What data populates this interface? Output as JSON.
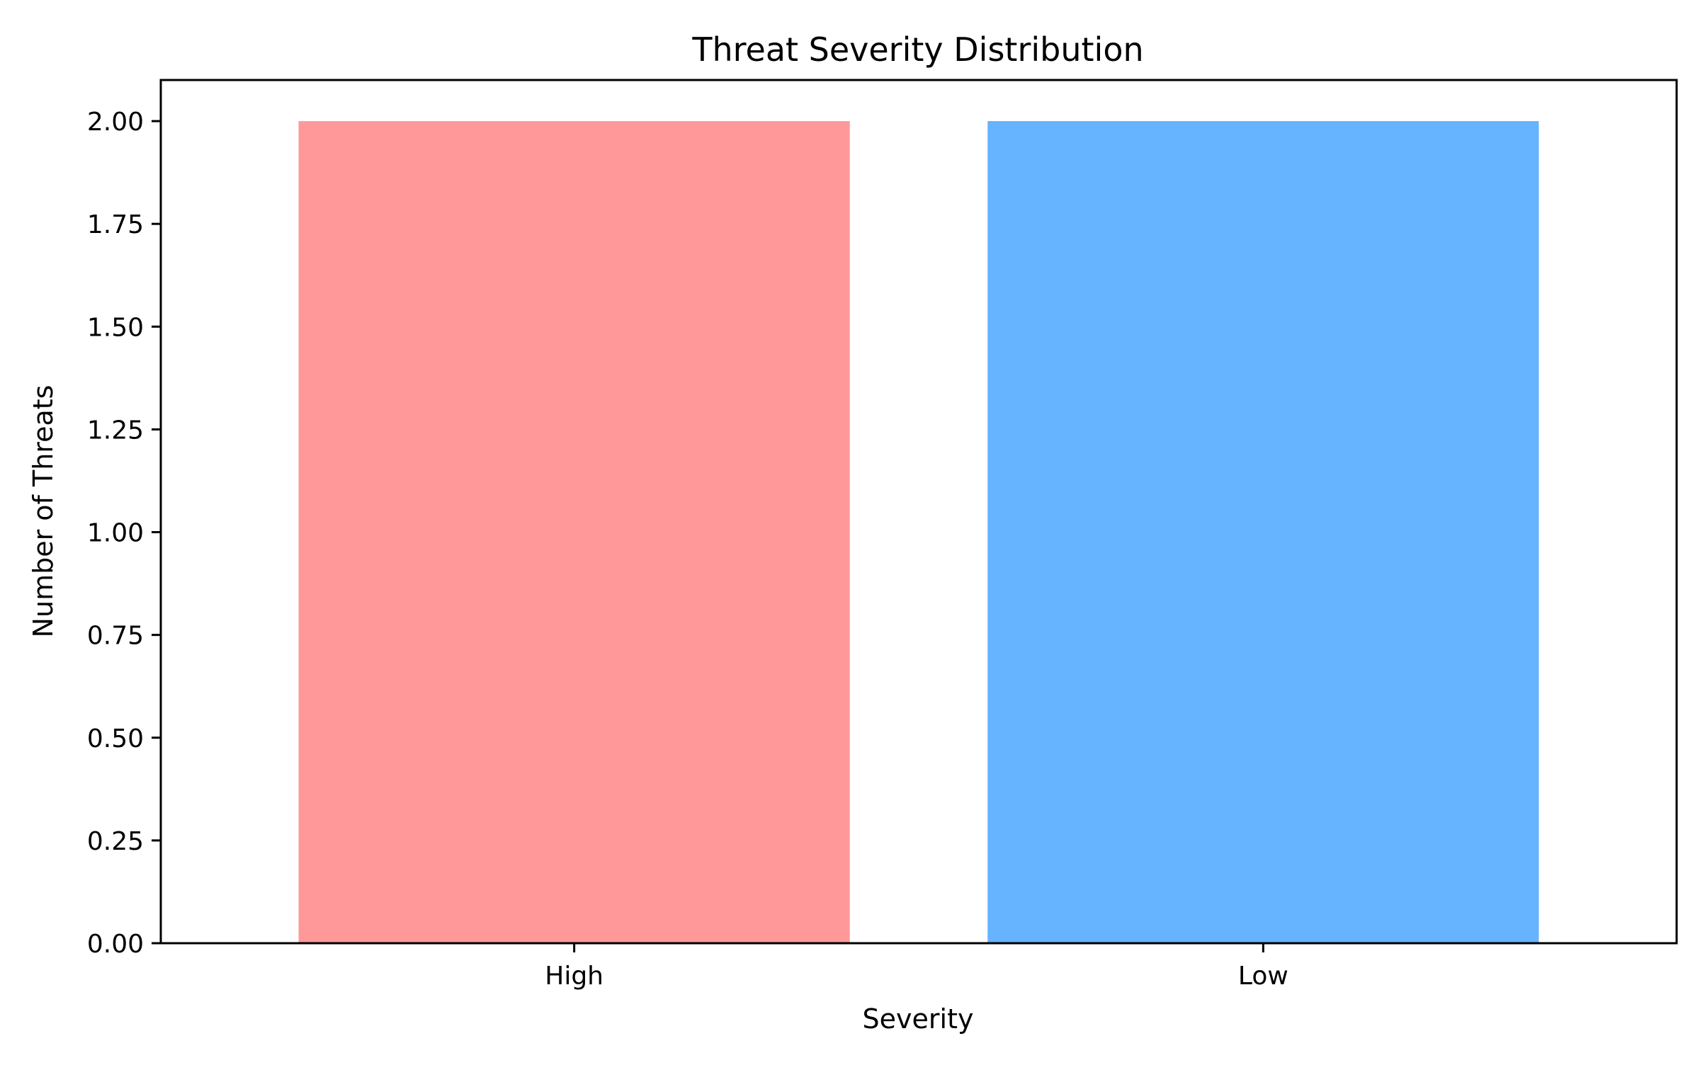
{
  "chart_data": {
    "type": "bar",
    "title": "Threat Severity Distribution",
    "xlabel": "Severity",
    "ylabel": "Number of Threats",
    "categories": [
      "High",
      "Low"
    ],
    "values": [
      2,
      2
    ],
    "colors": [
      "#ff9999",
      "#66b3ff"
    ],
    "ylim": [
      0,
      2.1
    ],
    "yticks": [
      "0.00",
      "0.25",
      "0.50",
      "0.75",
      "1.00",
      "1.25",
      "1.50",
      "1.75",
      "2.00"
    ],
    "grid": false,
    "legend": "none"
  }
}
